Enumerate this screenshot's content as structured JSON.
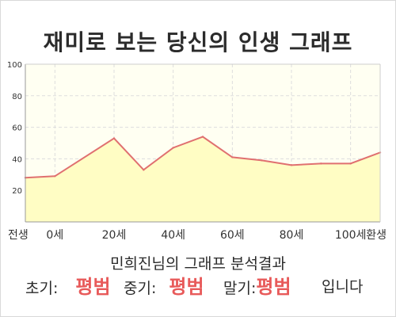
{
  "title": "재미로 보는 당신의 인생 그래프",
  "chart_data": {
    "type": "area",
    "title": "재미로 보는 당신의 인생 그래프",
    "x_tick_labels": [
      "전생",
      "0세",
      "20세",
      "40세",
      "60세",
      "80세",
      "100세",
      "환생"
    ],
    "y_ticks": [
      "100",
      "80",
      "60",
      "40",
      "20"
    ],
    "ylim": [
      0,
      100
    ],
    "grid": true,
    "x": [
      -10,
      0,
      20,
      30,
      40,
      50,
      60,
      70,
      80,
      90,
      100,
      110
    ],
    "values": [
      28,
      29,
      53,
      33,
      47,
      54,
      41,
      39,
      36,
      37,
      37,
      44
    ],
    "colors": {
      "line": "#e07070",
      "fill": "#fffdc4",
      "plot_bg": "#fffff2",
      "grid": "#dddddd"
    }
  },
  "caption": "민희진님의 그래프 분석결과",
  "summary": {
    "early_label": "초기:",
    "early_value": "평범",
    "middle_label": "중기:",
    "middle_value": "평범",
    "late_label": "말기:",
    "late_value": "평범",
    "suffix": "입니다"
  }
}
